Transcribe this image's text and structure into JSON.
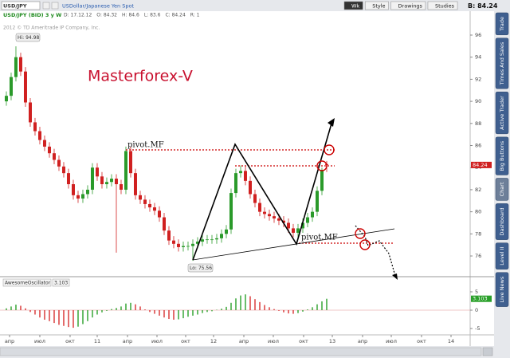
{
  "toolbar": {
    "symbol": "USD/JPY",
    "description": "USDollar/Japanese Yen Spot",
    "buttons": [
      "Wk",
      "Style",
      "Drawings",
      "Studies"
    ],
    "bid": "B: 84.24"
  },
  "side_tabs": [
    "Trade",
    "Times And Sales",
    "Active Trader",
    "Big Buttons",
    "Chart",
    "Dashboard",
    "Level II",
    "Live News"
  ],
  "chart_data": [
    {
      "type": "candlestick",
      "header": "USD/JPY (BID) 3 y W",
      "quote": [
        "D: 17.12.12",
        "O: 84.32",
        "H: 84.6",
        "L: 83.6",
        "C: 84.24",
        "R: 1"
      ],
      "copyright": "2012 © TD Ameritrade IP Company, Inc.",
      "title": "Masterforex-V",
      "annotations": [
        "pivot.MF",
        "pivot.MF"
      ],
      "hi_label": "Hi: 94.98",
      "lo_label": "Lo: 75.56",
      "price_label": 84.24,
      "up_color": "#2a9a2a",
      "down_color": "#d02020",
      "xlim": [
        -1.33,
        97
      ],
      "ylim": [
        74.27,
        97.01
      ],
      "yticks": [
        76,
        78,
        80,
        82,
        84,
        86,
        88,
        90,
        92,
        94,
        96
      ],
      "candles": [
        [
          90.0,
          90.9,
          89.6,
          90.5
        ],
        [
          90.5,
          92.6,
          90.1,
          92.2
        ],
        [
          92.2,
          94.98,
          91.8,
          94.0
        ],
        [
          94.0,
          94.4,
          92.3,
          92.7
        ],
        [
          92.7,
          93.1,
          89.5,
          89.9
        ],
        [
          89.9,
          90.3,
          87.7,
          88.1
        ],
        [
          88.1,
          88.5,
          86.9,
          87.3
        ],
        [
          87.3,
          87.7,
          86.1,
          86.5
        ],
        [
          86.5,
          86.9,
          85.5,
          85.9
        ],
        [
          85.9,
          86.3,
          84.9,
          85.3
        ],
        [
          85.3,
          85.7,
          84.3,
          84.7
        ],
        [
          84.7,
          85.1,
          83.7,
          84.1
        ],
        [
          84.1,
          84.5,
          83.1,
          83.5
        ],
        [
          83.5,
          83.9,
          82.1,
          82.5
        ],
        [
          82.5,
          82.9,
          81.1,
          81.5
        ],
        [
          81.5,
          81.9,
          80.8,
          81.2
        ],
        [
          81.2,
          82.0,
          80.8,
          81.6
        ],
        [
          81.6,
          82.4,
          81.2,
          82.0
        ],
        [
          82.0,
          84.4,
          81.6,
          84.0
        ],
        [
          84.0,
          84.4,
          82.8,
          83.2
        ],
        [
          83.2,
          83.6,
          82.1,
          82.5
        ],
        [
          82.5,
          83.1,
          82.1,
          82.7
        ],
        [
          82.7,
          83.4,
          82.3,
          83.0
        ],
        [
          83.0,
          83.4,
          76.3,
          82.5
        ],
        [
          82.5,
          82.9,
          81.6,
          82.0
        ],
        [
          82.0,
          85.9,
          81.6,
          85.5
        ],
        [
          85.5,
          85.9,
          83.1,
          83.5
        ],
        [
          83.5,
          83.9,
          81.1,
          81.5
        ],
        [
          81.5,
          81.9,
          80.7,
          81.1
        ],
        [
          81.1,
          81.5,
          80.3,
          80.7
        ],
        [
          80.7,
          81.1,
          80.0,
          80.4
        ],
        [
          80.4,
          80.8,
          79.7,
          80.1
        ],
        [
          80.1,
          80.5,
          79.1,
          79.5
        ],
        [
          79.5,
          79.9,
          77.9,
          78.3
        ],
        [
          78.3,
          78.7,
          77.0,
          77.4
        ],
        [
          77.4,
          77.8,
          76.7,
          77.1
        ],
        [
          77.1,
          77.5,
          76.4,
          76.8
        ],
        [
          76.8,
          77.3,
          76.4,
          76.9
        ],
        [
          76.9,
          77.3,
          76.5,
          76.9
        ],
        [
          76.9,
          77.5,
          75.56,
          77.1
        ],
        [
          77.1,
          77.7,
          76.7,
          77.3
        ],
        [
          77.3,
          77.9,
          76.9,
          77.5
        ],
        [
          77.5,
          77.9,
          77.1,
          77.5
        ],
        [
          77.5,
          77.9,
          77.1,
          77.5
        ],
        [
          77.5,
          78.0,
          77.1,
          77.6
        ],
        [
          77.6,
          78.4,
          77.2,
          78.0
        ],
        [
          78.0,
          78.8,
          77.6,
          78.4
        ],
        [
          78.4,
          82.1,
          78.0,
          81.7
        ],
        [
          81.7,
          83.9,
          81.3,
          83.5
        ],
        [
          83.5,
          84.2,
          83.1,
          83.7
        ],
        [
          83.7,
          84.1,
          82.4,
          82.8
        ],
        [
          82.8,
          83.2,
          81.2,
          81.6
        ],
        [
          81.6,
          82.0,
          80.4,
          80.8
        ],
        [
          80.8,
          81.2,
          79.6,
          80.0
        ],
        [
          80.0,
          80.4,
          79.4,
          79.8
        ],
        [
          79.8,
          80.2,
          79.2,
          79.6
        ],
        [
          79.6,
          80.0,
          79.0,
          79.4
        ],
        [
          79.4,
          79.8,
          78.8,
          79.2
        ],
        [
          79.2,
          79.6,
          78.6,
          79.0
        ],
        [
          79.0,
          79.4,
          78.1,
          78.5
        ],
        [
          78.5,
          78.9,
          77.7,
          78.1
        ],
        [
          78.1,
          78.9,
          77.7,
          78.5
        ],
        [
          78.5,
          79.4,
          78.1,
          79.0
        ],
        [
          79.0,
          79.9,
          78.6,
          79.5
        ],
        [
          79.5,
          80.4,
          79.1,
          80.0
        ],
        [
          80.0,
          82.3,
          79.6,
          81.9
        ],
        [
          81.9,
          84.0,
          81.5,
          83.8
        ],
        [
          84.32,
          84.6,
          83.6,
          84.24
        ]
      ]
    },
    {
      "type": "histogram",
      "name": "AwesomeOscillator",
      "current": 3.103,
      "up_color": "#2aa02a",
      "down_color": "#d83030",
      "xlim": [
        -1.33,
        97
      ],
      "ylim": [
        -6.74,
        6.3
      ],
      "yticks": [
        5,
        0,
        -5
      ],
      "xticks": [
        {
          "value": 0.67,
          "label": "апр"
        },
        {
          "value": 7,
          "label": "июл"
        },
        {
          "value": 13.33,
          "label": "окт"
        },
        {
          "value": 19,
          "label": "11"
        },
        {
          "value": 25.33,
          "label": "апр"
        },
        {
          "value": 31.5,
          "label": "июл"
        },
        {
          "value": 37.5,
          "label": "окт"
        },
        {
          "value": 43.33,
          "label": "12"
        },
        {
          "value": 49.67,
          "label": "апр"
        },
        {
          "value": 55.83,
          "label": "июл"
        },
        {
          "value": 62.17,
          "label": "окт"
        },
        {
          "value": 68.17,
          "label": "13"
        },
        {
          "value": 74.5,
          "label": "апр"
        },
        {
          "value": 80.5,
          "label": "июл"
        },
        {
          "value": 86.83,
          "label": "окт"
        },
        {
          "value": 93,
          "label": "14"
        }
      ],
      "values": [
        0.5,
        1.0,
        1.5,
        1.2,
        0.5,
        -0.5,
        -1.2,
        -2.0,
        -2.6,
        -3.0,
        -3.5,
        -4.0,
        -4.3,
        -4.6,
        -4.8,
        -4.5,
        -3.8,
        -3.0,
        -2.0,
        -1.2,
        -0.6,
        -0.2,
        0.3,
        0.6,
        1.0,
        1.8,
        2.0,
        1.6,
        1.0,
        0.2,
        -0.5,
        -1.0,
        -1.5,
        -2.0,
        -2.4,
        -2.6,
        -2.5,
        -2.2,
        -1.8,
        -1.5,
        -1.2,
        -0.8,
        -0.5,
        -0.3,
        0.1,
        0.4,
        0.9,
        2.0,
        3.2,
        4.0,
        4.3,
        3.8,
        3.0,
        2.2,
        1.4,
        0.8,
        0.3,
        -0.2,
        -0.6,
        -0.9,
        -1.0,
        -0.8,
        -0.4,
        0.2,
        0.8,
        1.6,
        2.4,
        3.103
      ]
    }
  ]
}
